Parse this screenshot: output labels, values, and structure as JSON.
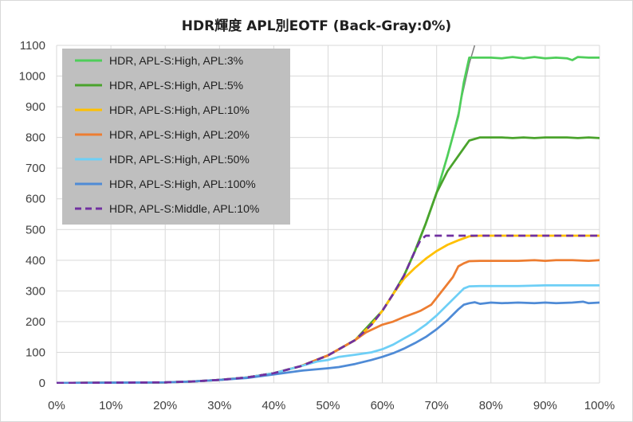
{
  "chart_data": {
    "type": "line",
    "title": "HDR輝度 APL別EOTF (Back-Gray:0%)",
    "xlabel": "",
    "ylabel": "",
    "xlim": [
      0,
      100
    ],
    "ylim": [
      0,
      1100
    ],
    "x_ticks": [
      "0%",
      "10%",
      "20%",
      "30%",
      "40%",
      "50%",
      "60%",
      "70%",
      "80%",
      "90%",
      "100%"
    ],
    "y_ticks": [
      "0",
      "100",
      "200",
      "300",
      "400",
      "500",
      "600",
      "700",
      "800",
      "900",
      "1000",
      "1100"
    ],
    "grid": true,
    "legend_position": "top-left",
    "reference_curve": {
      "color": "#7f7f7f",
      "x": [
        0,
        20,
        25,
        30,
        35,
        40,
        45,
        50,
        55,
        60,
        62,
        64,
        66,
        68,
        70,
        72,
        74,
        76,
        77
      ],
      "y": [
        0,
        2,
        5,
        10,
        18,
        32,
        55,
        90,
        140,
        235,
        290,
        350,
        430,
        520,
        620,
        740,
        880,
        1040,
        1100
      ]
    },
    "series": [
      {
        "name": "HDR, APL-S:High, APL:3%",
        "color": "#4fce5a",
        "dashed": false,
        "x": [
          0,
          20,
          25,
          30,
          35,
          40,
          45,
          50,
          55,
          60,
          62,
          64,
          66,
          68,
          70,
          72,
          74,
          75,
          76,
          78,
          80,
          82,
          84,
          86,
          88,
          90,
          92,
          94,
          95,
          96,
          98,
          100
        ],
        "y": [
          0,
          2,
          5,
          10,
          18,
          32,
          55,
          90,
          140,
          235,
          290,
          350,
          430,
          520,
          620,
          740,
          870,
          980,
          1060,
          1060,
          1060,
          1058,
          1062,
          1058,
          1062,
          1058,
          1060,
          1058,
          1052,
          1062,
          1060,
          1060
        ]
      },
      {
        "name": "HDR, APL-S:High, APL:5%",
        "color": "#4aa32c",
        "dashed": false,
        "x": [
          0,
          20,
          25,
          30,
          35,
          40,
          45,
          50,
          55,
          60,
          62,
          64,
          66,
          68,
          70,
          72,
          74,
          75,
          76,
          78,
          80,
          82,
          84,
          86,
          88,
          90,
          92,
          94,
          96,
          98,
          100
        ],
        "y": [
          0,
          2,
          5,
          10,
          18,
          32,
          55,
          90,
          140,
          235,
          290,
          350,
          430,
          520,
          620,
          690,
          740,
          765,
          790,
          800,
          800,
          800,
          798,
          800,
          798,
          800,
          800,
          800,
          798,
          800,
          798
        ]
      },
      {
        "name": "HDR, APL-S:High, APL:10%",
        "color": "#ffc000",
        "dashed": false,
        "x": [
          0,
          20,
          25,
          30,
          35,
          40,
          45,
          50,
          55,
          58,
          60,
          62,
          64,
          66,
          68,
          70,
          72,
          74,
          76,
          78,
          80,
          85,
          90,
          95,
          100
        ],
        "y": [
          0,
          2,
          5,
          10,
          18,
          32,
          55,
          90,
          140,
          190,
          235,
          290,
          340,
          375,
          405,
          430,
          450,
          465,
          478,
          480,
          480,
          480,
          480,
          480,
          480
        ]
      },
      {
        "name": "HDR, APL-S:High, APL:20%",
        "color": "#ed7d31",
        "dashed": false,
        "x": [
          0,
          20,
          25,
          30,
          35,
          40,
          45,
          50,
          55,
          57,
          60,
          62,
          64,
          66,
          67,
          69,
          71,
          73,
          74,
          75,
          76,
          78,
          80,
          82,
          85,
          88,
          90,
          92,
          95,
          98,
          100
        ],
        "y": [
          0,
          2,
          5,
          10,
          18,
          32,
          55,
          90,
          140,
          165,
          190,
          200,
          215,
          228,
          235,
          255,
          300,
          345,
          380,
          390,
          397,
          398,
          398,
          398,
          398,
          400,
          398,
          400,
          400,
          398,
          400
        ]
      },
      {
        "name": "HDR, APL-S:High, APL:50%",
        "color": "#6ecff6",
        "dashed": false,
        "x": [
          0,
          20,
          25,
          30,
          35,
          40,
          45,
          48,
          50,
          52,
          55,
          58,
          60,
          62,
          64,
          66,
          68,
          70,
          72,
          74,
          75,
          76,
          78,
          80,
          85,
          90,
          95,
          100
        ],
        "y": [
          0,
          2,
          5,
          10,
          18,
          32,
          55,
          70,
          75,
          85,
          92,
          100,
          110,
          125,
          145,
          165,
          190,
          220,
          255,
          290,
          308,
          315,
          316,
          316,
          316,
          318,
          318,
          318
        ]
      },
      {
        "name": "HDR, APL-S:High, APL:100%",
        "color": "#4f8bd6",
        "dashed": false,
        "x": [
          0,
          20,
          25,
          30,
          35,
          40,
          45,
          50,
          52,
          55,
          58,
          60,
          62,
          64,
          66,
          68,
          70,
          72,
          74,
          75,
          76,
          77,
          78,
          80,
          82,
          85,
          88,
          90,
          92,
          95,
          97,
          98,
          100
        ],
        "y": [
          0,
          2,
          5,
          10,
          16,
          28,
          40,
          48,
          52,
          62,
          75,
          85,
          97,
          112,
          130,
          150,
          175,
          205,
          240,
          255,
          260,
          263,
          258,
          262,
          260,
          262,
          260,
          262,
          260,
          262,
          265,
          260,
          262
        ]
      },
      {
        "name": "HDR, APL-S:Middle, APL:10%",
        "color": "#7030a0",
        "dashed": true,
        "x": [
          0,
          20,
          25,
          30,
          35,
          40,
          45,
          50,
          55,
          58,
          60,
          62,
          64,
          66,
          67,
          68,
          70,
          75,
          80,
          85,
          90,
          95,
          100
        ],
        "y": [
          0,
          2,
          5,
          10,
          18,
          32,
          55,
          90,
          140,
          190,
          235,
          290,
          350,
          430,
          465,
          480,
          480,
          480,
          480,
          480,
          480,
          480,
          480
        ]
      }
    ]
  }
}
